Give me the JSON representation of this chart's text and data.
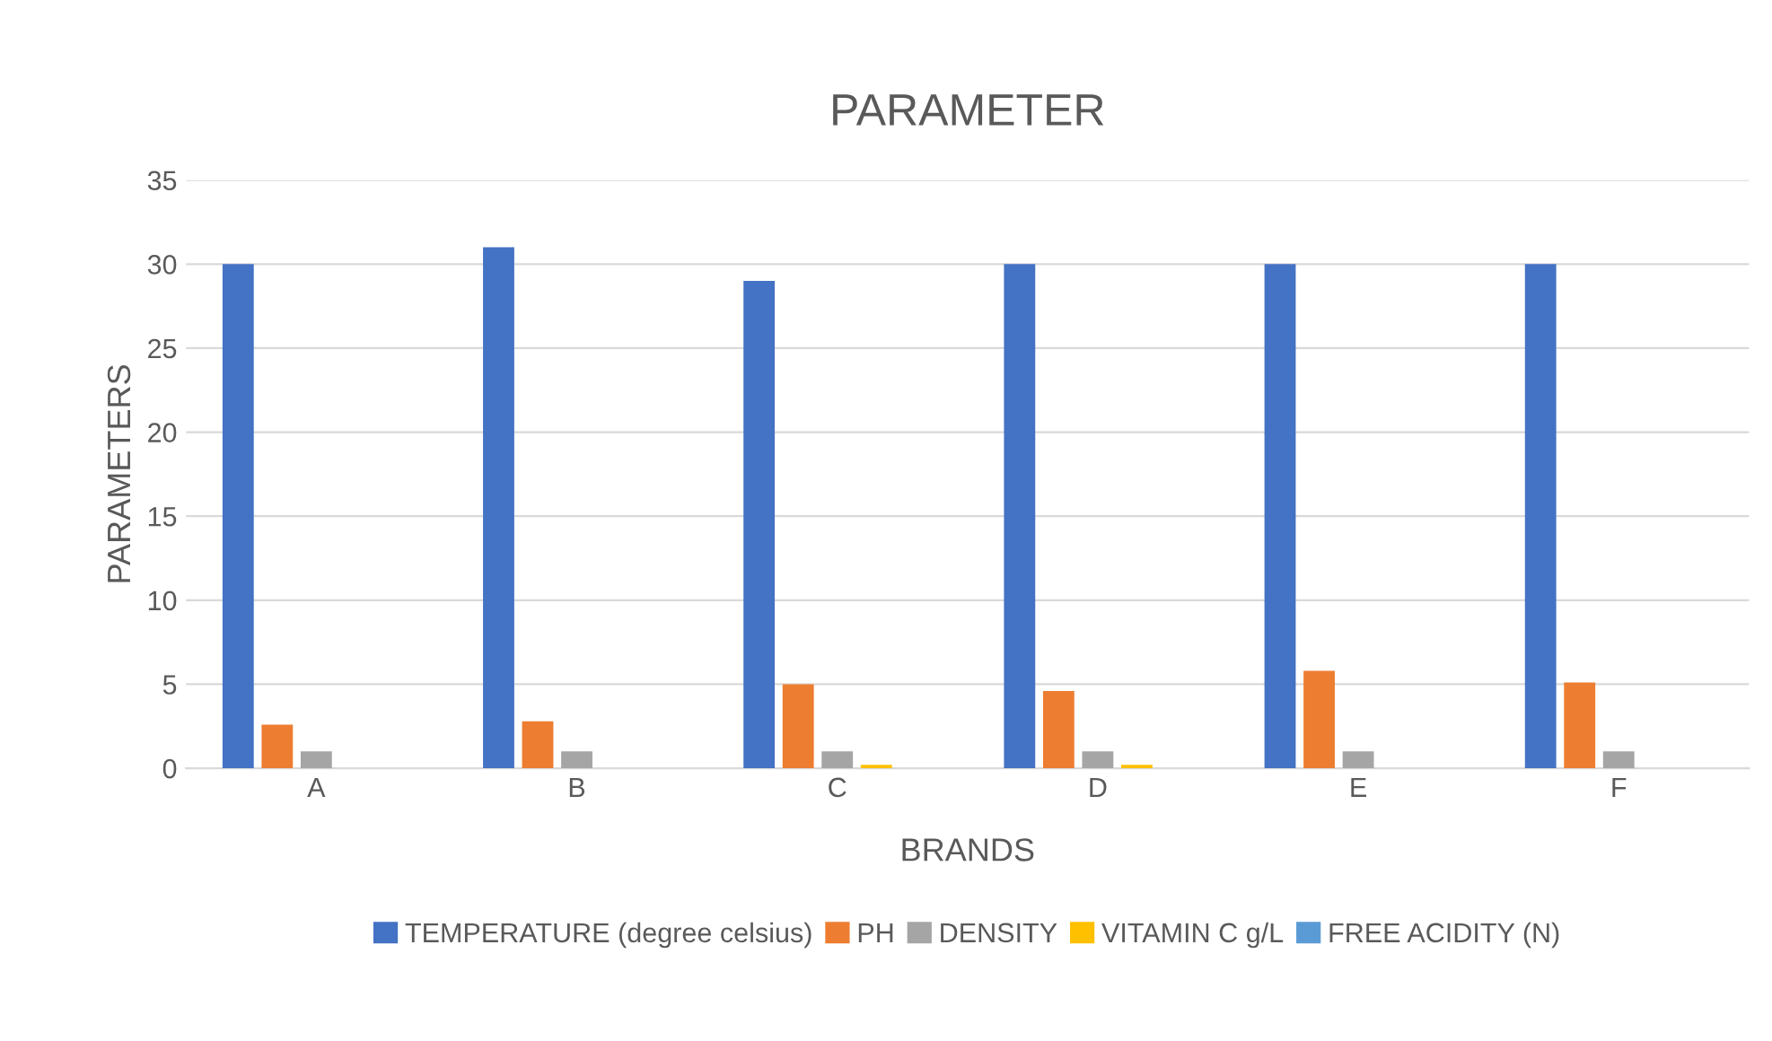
{
  "chart_data": {
    "type": "bar",
    "title": "PARAMETER",
    "xlabel": "BRANDS",
    "ylabel": "PARAMETERS",
    "categories": [
      "A",
      "B",
      "C",
      "D",
      "E",
      "F"
    ],
    "series": [
      {
        "name": "TEMPERATURE (degree celsius)",
        "color": "#4472c4",
        "values": [
          30,
          31,
          29,
          30,
          30,
          30
        ]
      },
      {
        "name": "PH",
        "color": "#ed7d31",
        "values": [
          2.6,
          2.8,
          5.0,
          4.6,
          5.8,
          5.1
        ]
      },
      {
        "name": "DENSITY",
        "color": "#a5a5a5",
        "values": [
          1.0,
          1.0,
          1.0,
          1.0,
          1.0,
          1.0
        ]
      },
      {
        "name": "VITAMIN C g/L",
        "color": "#ffc000",
        "values": [
          0,
          0,
          0.2,
          0.2,
          0,
          0
        ]
      },
      {
        "name": "FREE ACIDITY (N)",
        "color": "#5b9bd5",
        "values": [
          0,
          0,
          0,
          0,
          0,
          0
        ]
      }
    ],
    "ylim": [
      0,
      35
    ],
    "yticks": [
      0,
      5,
      10,
      15,
      20,
      25,
      30,
      35
    ],
    "grid": "y",
    "legend": "bottom"
  }
}
